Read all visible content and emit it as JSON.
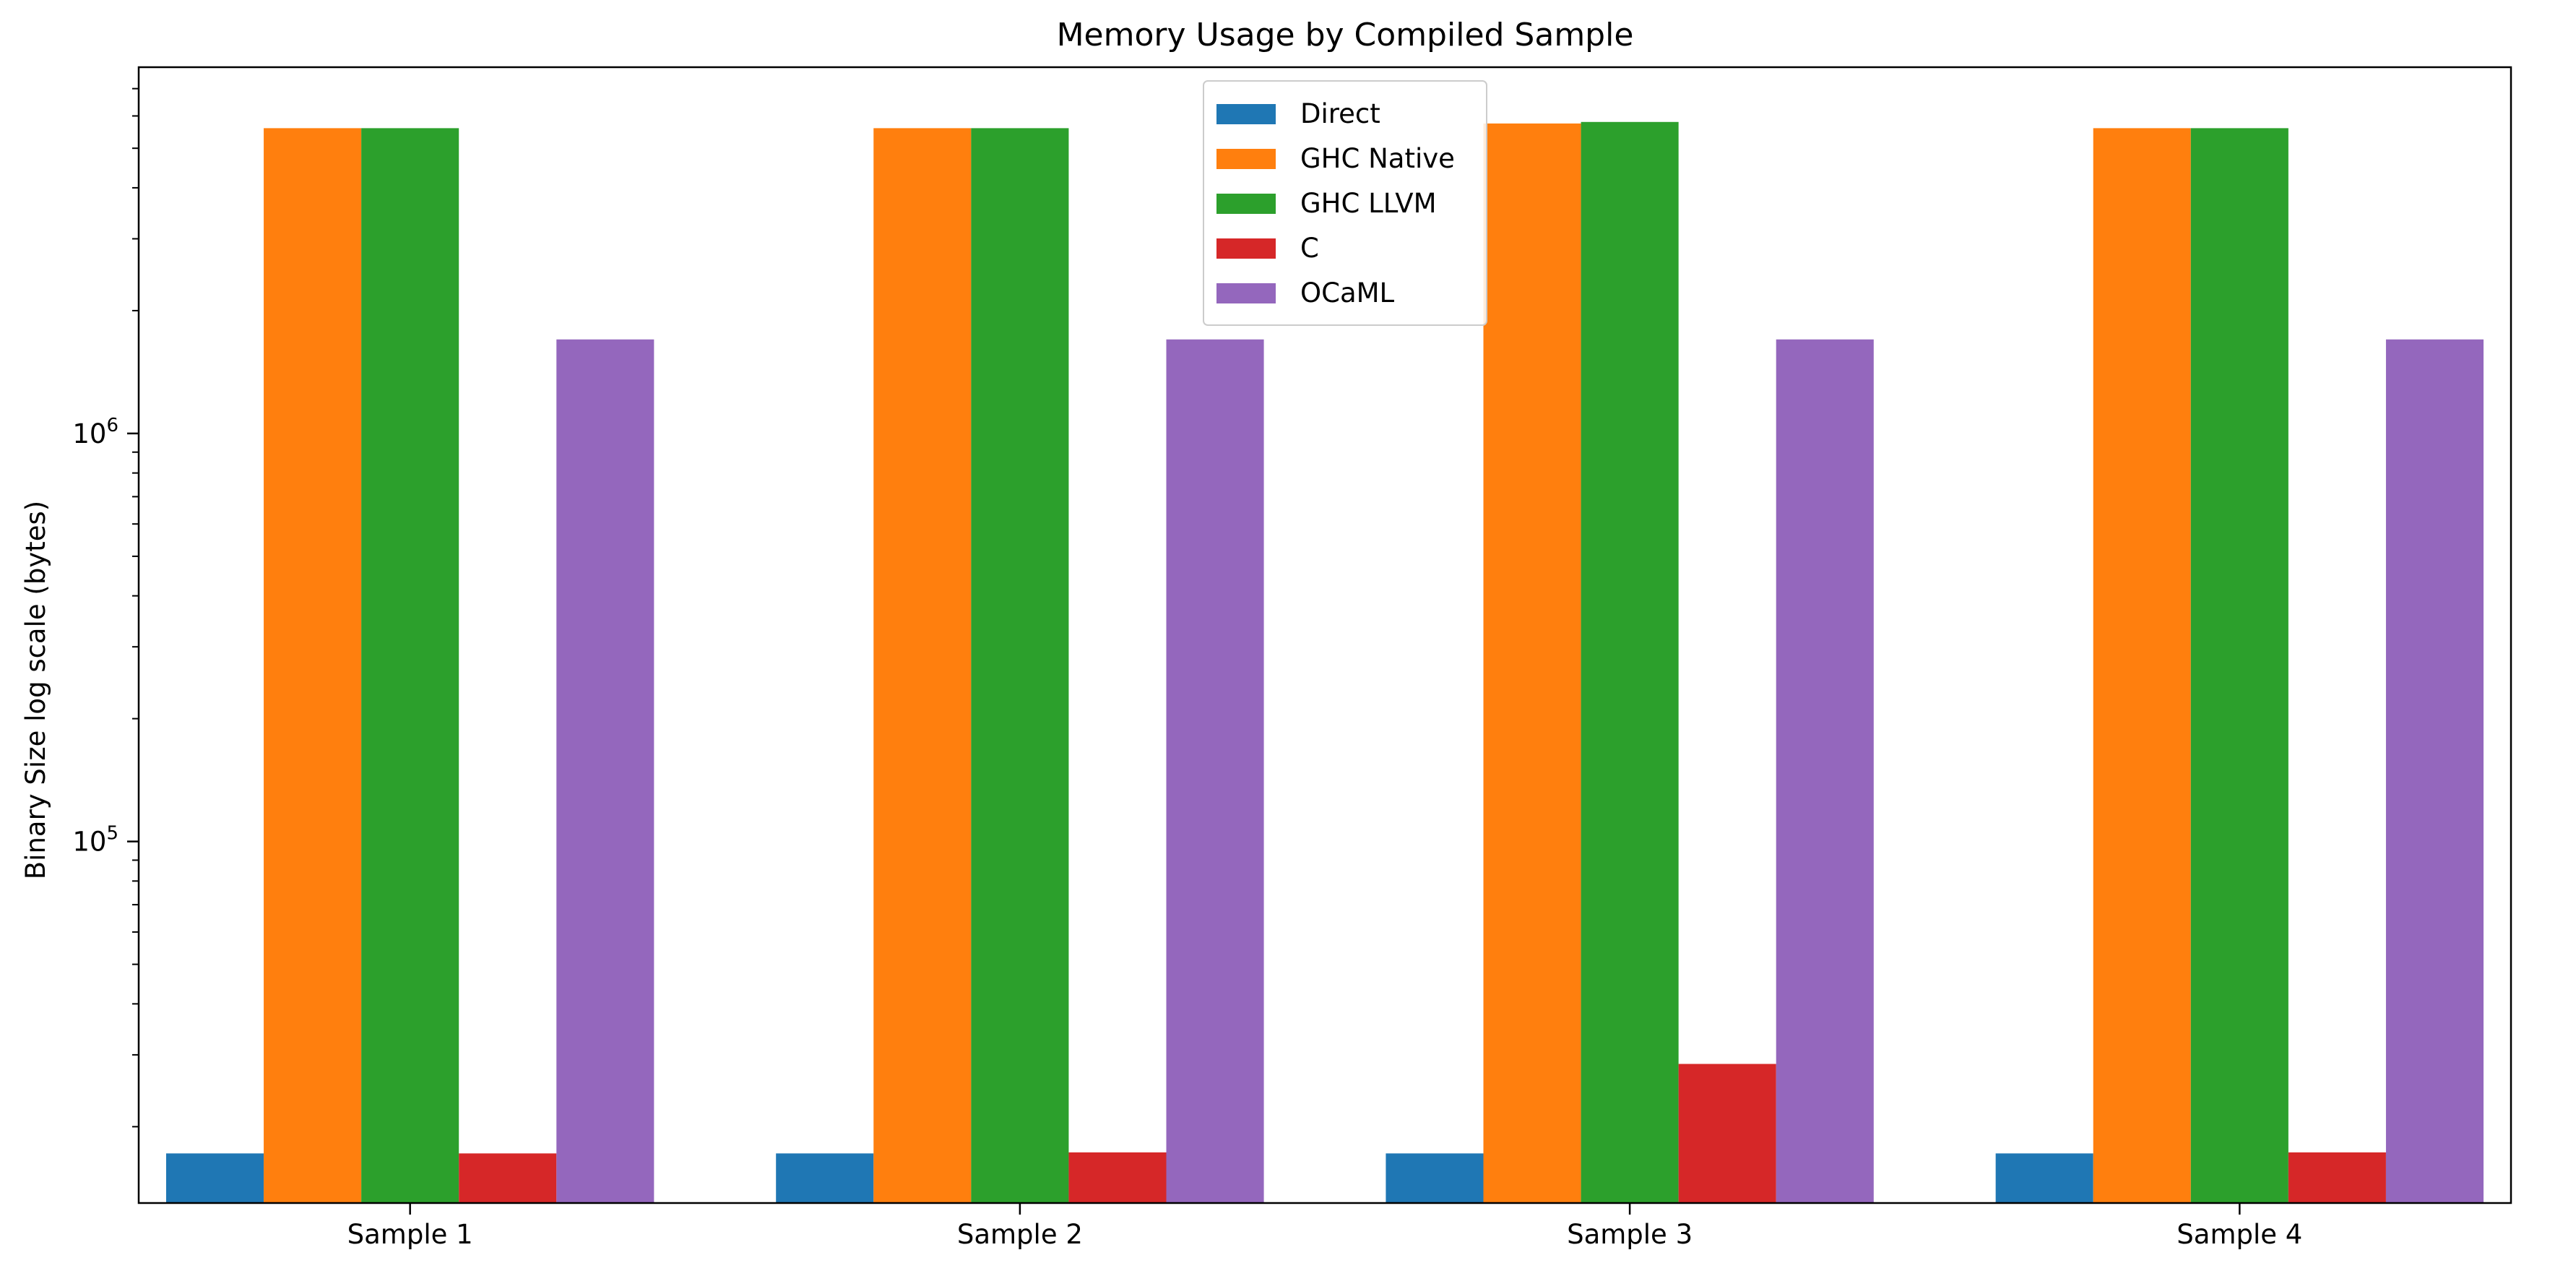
{
  "chart_data": {
    "type": "bar",
    "title": "Memory Usage by Compiled Sample",
    "xlabel": "",
    "ylabel": "Binary Size log scale (bytes)",
    "yscale": "log",
    "ylim": [
      13000,
      7900000
    ],
    "y_ticks": [
      {
        "value": 100000,
        "base": "10",
        "exp": "5"
      },
      {
        "value": 1000000,
        "base": "10",
        "exp": "6"
      }
    ],
    "categories": [
      "Sample 1",
      "Sample 2",
      "Sample 3",
      "Sample 4"
    ],
    "series": [
      {
        "name": "Direct",
        "color": "#1f77b4",
        "values": [
          17200,
          17200,
          17200,
          17200
        ]
      },
      {
        "name": "GHC Native",
        "color": "#ff7f0e",
        "values": [
          5600000,
          5600000,
          5750000,
          5600000
        ]
      },
      {
        "name": "GHC LLVM",
        "color": "#2ca02c",
        "values": [
          5600000,
          5600000,
          5800000,
          5600000
        ]
      },
      {
        "name": "C",
        "color": "#d62728",
        "values": [
          17200,
          17300,
          28500,
          17300
        ]
      },
      {
        "name": "OCaML",
        "color": "#9467bd",
        "values": [
          1700000,
          1700000,
          1700000,
          1700000
        ]
      }
    ],
    "grid": false,
    "legend_position": "upper-center"
  }
}
